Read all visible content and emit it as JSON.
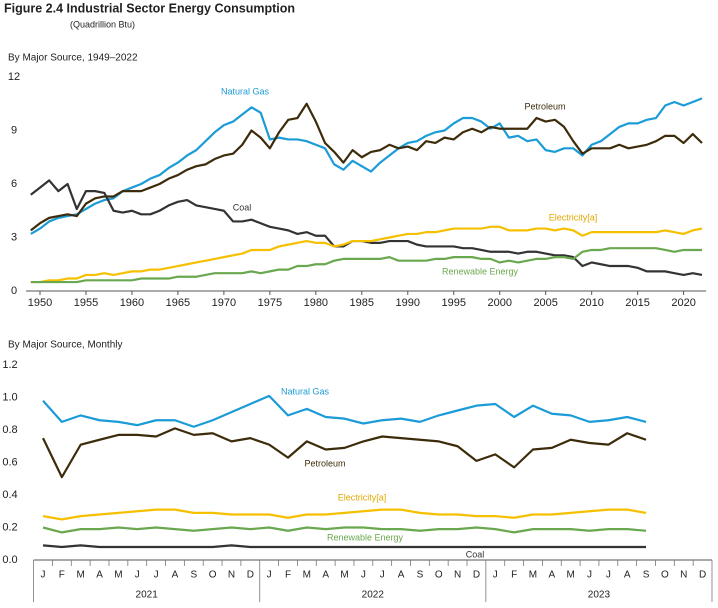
{
  "figure": {
    "title": "Figure 2.4  Industrial Sector Energy Consumption",
    "subtitle": "(Quadrillion Btu)"
  },
  "chart_data": [
    {
      "type": "line",
      "title": "By Major Source, 1949–2022",
      "x": [
        1949,
        1950,
        1951,
        1952,
        1953,
        1954,
        1955,
        1956,
        1957,
        1958,
        1959,
        1960,
        1961,
        1962,
        1963,
        1964,
        1965,
        1966,
        1967,
        1968,
        1969,
        1970,
        1971,
        1972,
        1973,
        1974,
        1975,
        1976,
        1977,
        1978,
        1979,
        1980,
        1981,
        1982,
        1983,
        1984,
        1985,
        1986,
        1987,
        1988,
        1989,
        1990,
        1991,
        1992,
        1993,
        1994,
        1995,
        1996,
        1997,
        1998,
        1999,
        2000,
        2001,
        2002,
        2003,
        2004,
        2005,
        2006,
        2007,
        2008,
        2009,
        2010,
        2011,
        2012,
        2013,
        2014,
        2015,
        2016,
        2017,
        2018,
        2019,
        2020,
        2021,
        2022
      ],
      "xlim": [
        1949,
        2022
      ],
      "xticks": [
        1950,
        1955,
        1960,
        1965,
        1970,
        1975,
        1980,
        1985,
        1990,
        1995,
        2000,
        2005,
        2010,
        2015,
        2020
      ],
      "ylim": [
        0,
        12
      ],
      "yticks": [
        0,
        3,
        6,
        9,
        12
      ],
      "series": [
        {
          "name": "Natural Gas",
          "color": "#1b9bd7",
          "values": [
            3.2,
            3.5,
            3.9,
            4.1,
            4.2,
            4.3,
            4.6,
            4.9,
            5.1,
            5.2,
            5.6,
            5.8,
            6.0,
            6.3,
            6.5,
            6.9,
            7.2,
            7.6,
            7.9,
            8.4,
            8.9,
            9.3,
            9.5,
            9.9,
            10.3,
            10.0,
            8.5,
            8.6,
            8.5,
            8.5,
            8.4,
            8.2,
            8.0,
            7.1,
            6.8,
            7.3,
            7.0,
            6.7,
            7.2,
            7.6,
            8.0,
            8.3,
            8.4,
            8.7,
            8.9,
            9.0,
            9.4,
            9.7,
            9.7,
            9.5,
            9.1,
            9.4,
            8.6,
            8.7,
            8.4,
            8.5,
            7.9,
            7.8,
            8.0,
            8.0,
            7.6,
            8.2,
            8.4,
            8.8,
            9.2,
            9.4,
            9.4,
            9.6,
            9.7,
            10.4,
            10.6,
            10.4,
            10.6,
            10.8
          ]
        },
        {
          "name": "Petroleum",
          "color": "#3d2c0b",
          "values": [
            3.4,
            3.8,
            4.1,
            4.2,
            4.3,
            4.2,
            4.9,
            5.2,
            5.3,
            5.3,
            5.6,
            5.6,
            5.6,
            5.8,
            6.0,
            6.3,
            6.5,
            6.8,
            7.0,
            7.1,
            7.4,
            7.6,
            7.7,
            8.2,
            9.0,
            8.6,
            8.0,
            8.9,
            9.6,
            9.7,
            10.5,
            9.5,
            8.3,
            7.8,
            7.2,
            7.9,
            7.5,
            7.8,
            7.9,
            8.2,
            8.0,
            8.1,
            7.9,
            8.4,
            8.3,
            8.6,
            8.5,
            8.9,
            9.1,
            8.9,
            9.2,
            9.1,
            9.1,
            9.1,
            9.1,
            9.7,
            9.5,
            9.6,
            9.2,
            8.4,
            7.7,
            8.0,
            8.0,
            8.0,
            8.2,
            8.0,
            8.1,
            8.2,
            8.4,
            8.7,
            8.7,
            8.3,
            8.8,
            8.3
          ]
        },
        {
          "name": "Coal",
          "color": "#333333",
          "values": [
            5.4,
            5.8,
            6.2,
            5.6,
            6.0,
            4.6,
            5.6,
            5.6,
            5.5,
            4.5,
            4.4,
            4.5,
            4.3,
            4.3,
            4.5,
            4.8,
            5.0,
            5.1,
            4.8,
            4.7,
            4.6,
            4.5,
            3.9,
            3.9,
            4.0,
            3.8,
            3.6,
            3.5,
            3.4,
            3.2,
            3.3,
            3.1,
            3.1,
            2.5,
            2.5,
            2.8,
            2.8,
            2.7,
            2.7,
            2.8,
            2.8,
            2.8,
            2.6,
            2.5,
            2.5,
            2.5,
            2.5,
            2.4,
            2.4,
            2.3,
            2.2,
            2.2,
            2.2,
            2.1,
            2.2,
            2.2,
            2.1,
            2.0,
            2.0,
            1.9,
            1.4,
            1.6,
            1.5,
            1.4,
            1.4,
            1.4,
            1.3,
            1.1,
            1.1,
            1.1,
            1.0,
            0.9,
            1.0,
            0.9
          ]
        },
        {
          "name": "Electricity[a]",
          "color": "#f5c000",
          "values": [
            0.5,
            0.5,
            0.6,
            0.6,
            0.7,
            0.7,
            0.9,
            0.9,
            1.0,
            0.9,
            1.0,
            1.1,
            1.1,
            1.2,
            1.2,
            1.3,
            1.4,
            1.5,
            1.6,
            1.7,
            1.8,
            1.9,
            2.0,
            2.1,
            2.3,
            2.3,
            2.3,
            2.5,
            2.6,
            2.7,
            2.8,
            2.7,
            2.7,
            2.5,
            2.6,
            2.8,
            2.8,
            2.8,
            2.9,
            3.0,
            3.1,
            3.2,
            3.2,
            3.3,
            3.3,
            3.4,
            3.5,
            3.5,
            3.5,
            3.5,
            3.6,
            3.6,
            3.4,
            3.4,
            3.4,
            3.5,
            3.5,
            3.4,
            3.5,
            3.4,
            3.1,
            3.3,
            3.3,
            3.3,
            3.3,
            3.3,
            3.3,
            3.3,
            3.3,
            3.4,
            3.3,
            3.2,
            3.4,
            3.5
          ]
        },
        {
          "name": "Renewable Energy",
          "color": "#6aa84f",
          "values": [
            0.5,
            0.5,
            0.5,
            0.5,
            0.5,
            0.5,
            0.6,
            0.6,
            0.6,
            0.6,
            0.6,
            0.6,
            0.7,
            0.7,
            0.7,
            0.7,
            0.8,
            0.8,
            0.8,
            0.9,
            1.0,
            1.0,
            1.0,
            1.0,
            1.1,
            1.0,
            1.1,
            1.2,
            1.2,
            1.4,
            1.4,
            1.5,
            1.5,
            1.7,
            1.8,
            1.8,
            1.8,
            1.8,
            1.8,
            1.9,
            1.7,
            1.7,
            1.7,
            1.7,
            1.8,
            1.8,
            1.9,
            1.9,
            1.9,
            1.8,
            1.8,
            1.6,
            1.7,
            1.6,
            1.7,
            1.8,
            1.8,
            1.9,
            1.9,
            1.8,
            2.2,
            2.3,
            2.3,
            2.4,
            2.4,
            2.4,
            2.4,
            2.4,
            2.4,
            2.3,
            2.2,
            2.3,
            2.3,
            2.3
          ]
        }
      ]
    },
    {
      "type": "line",
      "title": "By Major Source, Monthly",
      "categories": [
        "J",
        "F",
        "M",
        "A",
        "M",
        "J",
        "J",
        "A",
        "S",
        "O",
        "N",
        "D",
        "J",
        "F",
        "M",
        "A",
        "M",
        "J",
        "J",
        "A",
        "S",
        "O",
        "N",
        "D",
        "J",
        "F",
        "M",
        "A",
        "M",
        "J",
        "J",
        "A",
        "S",
        "O",
        "N",
        "D"
      ],
      "year_groups": [
        "2021",
        "2022",
        "2023"
      ],
      "ylim": [
        0,
        1.2
      ],
      "yticks": [
        {
          "value": 0,
          "label": "0.0"
        },
        0.2,
        0.4,
        0.6,
        0.8,
        {
          "value": 1,
          "label": "1.0"
        },
        1.2
      ],
      "series": [
        {
          "name": "Natural Gas",
          "color": "#1b9bd7",
          "values": [
            0.98,
            0.85,
            0.89,
            0.86,
            0.85,
            0.83,
            0.86,
            0.86,
            0.82,
            0.86,
            0.91,
            0.96,
            1.01,
            0.89,
            0.93,
            0.88,
            0.87,
            0.84,
            0.86,
            0.87,
            0.85,
            0.89,
            0.92,
            0.95,
            0.96,
            0.88,
            0.95,
            0.9,
            0.89,
            0.85,
            0.86,
            0.88,
            0.85,
            null,
            null,
            null
          ]
        },
        {
          "name": "Petroleum",
          "color": "#3d2c0b",
          "values": [
            0.75,
            0.51,
            0.71,
            0.74,
            0.77,
            0.77,
            0.76,
            0.81,
            0.77,
            0.78,
            0.73,
            0.75,
            0.71,
            0.63,
            0.73,
            0.68,
            0.69,
            0.73,
            0.76,
            0.75,
            0.74,
            0.73,
            0.7,
            0.61,
            0.65,
            0.57,
            0.68,
            0.69,
            0.74,
            0.72,
            0.71,
            0.78,
            0.74,
            null,
            null,
            null
          ]
        },
        {
          "name": "Electricity[a]",
          "color": "#f5c000",
          "values": [
            0.27,
            0.25,
            0.27,
            0.28,
            0.29,
            0.3,
            0.31,
            0.31,
            0.29,
            0.29,
            0.28,
            0.28,
            0.28,
            0.26,
            0.28,
            0.28,
            0.29,
            0.3,
            0.31,
            0.31,
            0.29,
            0.28,
            0.28,
            0.27,
            0.27,
            0.26,
            0.28,
            0.28,
            0.29,
            0.3,
            0.31,
            0.31,
            0.29,
            null,
            null,
            null
          ]
        },
        {
          "name": "Renewable Energy",
          "color": "#6aa84f",
          "values": [
            0.2,
            0.17,
            0.19,
            0.19,
            0.2,
            0.19,
            0.2,
            0.19,
            0.18,
            0.19,
            0.2,
            0.19,
            0.2,
            0.18,
            0.2,
            0.19,
            0.2,
            0.2,
            0.19,
            0.19,
            0.18,
            0.19,
            0.19,
            0.2,
            0.19,
            0.17,
            0.19,
            0.19,
            0.19,
            0.18,
            0.19,
            0.19,
            0.18,
            null,
            null,
            null
          ]
        },
        {
          "name": "Coal",
          "color": "#333333",
          "values": [
            0.09,
            0.08,
            0.09,
            0.08,
            0.08,
            0.08,
            0.08,
            0.08,
            0.08,
            0.08,
            0.09,
            0.08,
            0.08,
            0.08,
            0.08,
            0.08,
            0.08,
            0.08,
            0.08,
            0.08,
            0.08,
            0.08,
            0.08,
            0.08,
            0.08,
            0.08,
            0.08,
            0.08,
            0.08,
            0.08,
            0.08,
            0.08,
            0.08,
            null,
            null,
            null
          ]
        }
      ]
    }
  ]
}
